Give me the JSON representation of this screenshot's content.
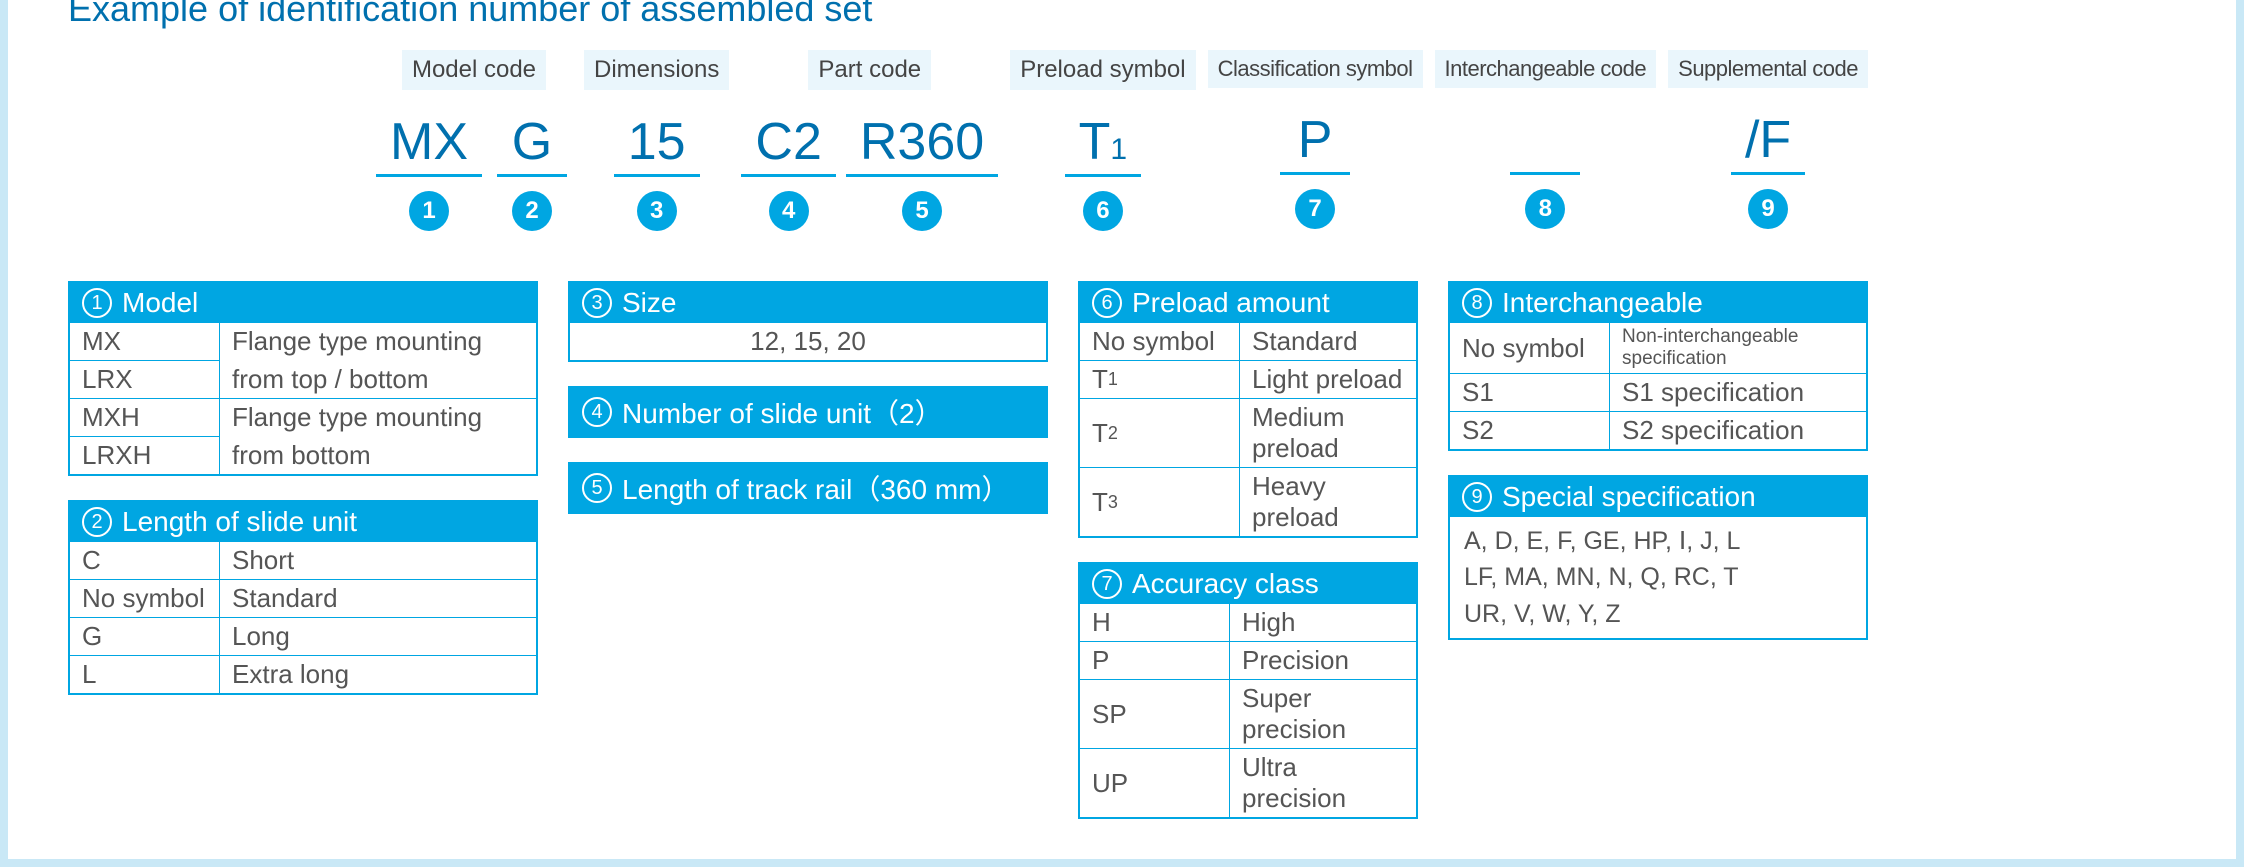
{
  "title": "Example of identification number of assembled set",
  "colors": {
    "brand": "#00a6e2",
    "brand_dark": "#0070ae",
    "panel_bg": "#eaf6fc"
  },
  "segments": [
    {
      "label": "Model code",
      "codes": [
        {
          "text": "MX",
          "n": "1"
        },
        {
          "text": "G",
          "n": "2"
        }
      ]
    },
    {
      "label": "Dimensions",
      "codes": [
        {
          "text": "15",
          "n": "3"
        }
      ]
    },
    {
      "label": "Part code",
      "codes": [
        {
          "text": "C2",
          "n": "4"
        },
        {
          "text": "R360",
          "n": "5"
        }
      ]
    },
    {
      "label": "Preload symbol",
      "codes": [
        {
          "text": "T",
          "sub": "1",
          "n": "6"
        }
      ]
    },
    {
      "label": "Classification symbol",
      "narrow": true,
      "codes": [
        {
          "text": "P",
          "n": "7"
        }
      ]
    },
    {
      "label": "Interchangeable code",
      "narrow": true,
      "codes": [
        {
          "text": "",
          "n": "8"
        }
      ]
    },
    {
      "label": "Supplemental code",
      "narrow": true,
      "codes": [
        {
          "text": "/F",
          "n": "9"
        }
      ]
    }
  ],
  "legend": {
    "box1": {
      "n": "1",
      "title": "Model",
      "rows": [
        {
          "k": "MX",
          "v": "Flange type mounting",
          "cont": true
        },
        {
          "k": "LRX",
          "v": "from top / bottom"
        },
        {
          "k": "MXH",
          "v": "Flange type mounting",
          "cont": true
        },
        {
          "k": "LRXH",
          "v": "from bottom"
        }
      ]
    },
    "box2": {
      "n": "2",
      "title": "Length of slide unit",
      "rows": [
        {
          "k": "C",
          "v": "Short"
        },
        {
          "k": "No symbol",
          "v": "Standard"
        },
        {
          "k": "G",
          "v": "Long"
        },
        {
          "k": "L",
          "v": "Extra long"
        }
      ]
    },
    "box3": {
      "n": "3",
      "title": "Size",
      "center_value": "12, 15, 20"
    },
    "box4": {
      "n": "4",
      "title": "Number of slide unit（2）"
    },
    "box5": {
      "n": "5",
      "title": "Length of track rail（360 mm）"
    },
    "box6": {
      "n": "6",
      "title": "Preload amount",
      "rows": [
        {
          "k": "No symbol",
          "v": "Standard"
        },
        {
          "k": "T",
          "ksub": "1",
          "v": "Light preload"
        },
        {
          "k": "T",
          "ksub": "2",
          "v": "Medium preload"
        },
        {
          "k": "T",
          "ksub": "3",
          "v": "Heavy preload"
        }
      ]
    },
    "box7": {
      "n": "7",
      "title": "Accuracy class",
      "rows": [
        {
          "k": "H",
          "v": "High"
        },
        {
          "k": "P",
          "v": "Precision"
        },
        {
          "k": "SP",
          "v": "Super precision"
        },
        {
          "k": "UP",
          "v": "Ultra precision"
        }
      ]
    },
    "box8": {
      "n": "8",
      "title": "Interchangeable",
      "rows": [
        {
          "k": "No symbol",
          "v": "Non-interchangeable specification",
          "small": true
        },
        {
          "k": "S1",
          "v": "S1 specification"
        },
        {
          "k": "S2",
          "v": "S2 specification"
        }
      ]
    },
    "box9": {
      "n": "9",
      "title": "Special specification",
      "note_lines": [
        "A, D, E, F, GE, HP, Ⅰ, J, L",
        "LF, MA, MN, N, Q, RC, T",
        "UR, V, W, Y, Z"
      ]
    }
  }
}
